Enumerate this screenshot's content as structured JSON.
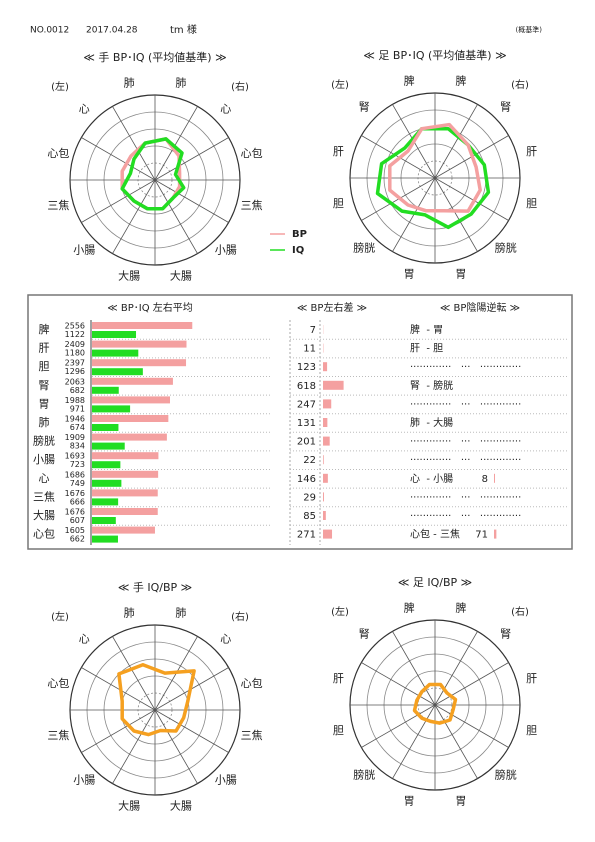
{
  "header": {
    "number": "NO.0012",
    "date": "2017.04.28",
    "name": "tm 様",
    "note": "(概基準)"
  },
  "chart_data": [
    {
      "type": "radar",
      "title": "≪ 手 BP･IQ (平均値基準) ≫",
      "left_label": "(左)",
      "right_label": "(右)",
      "axes": [
        "肺",
        "心",
        "心包",
        "三焦",
        "小腸",
        "大腸",
        "大腸",
        "小腸",
        "三焦",
        "心包",
        "心",
        "肺"
      ],
      "rlim": [
        0,
        100
      ],
      "rticks": [
        20,
        40,
        60,
        80,
        100
      ],
      "series": [
        {
          "name": "BP",
          "color": "#f4a0a0",
          "values": [
            50,
            40,
            30,
            30,
            30,
            35,
            35,
            35,
            40,
            40,
            40,
            45
          ]
        },
        {
          "name": "IQ",
          "color": "#22dd22",
          "values": [
            50,
            45,
            25,
            35,
            30,
            35,
            35,
            35,
            40,
            30,
            35,
            45
          ]
        }
      ]
    },
    {
      "type": "radar",
      "title": "≪ 足 BP･IQ (平均値基準) ≫",
      "left_label": "(左)",
      "right_label": "(右)",
      "axes": [
        "脾",
        "腎",
        "肝",
        "胆",
        "膀胱",
        "胃",
        "胃",
        "膀胱",
        "胆",
        "肝",
        "腎",
        "脾"
      ],
      "rlim": [
        0,
        100
      ],
      "rticks": [
        20,
        40,
        60,
        80,
        100
      ],
      "series": [
        {
          "color": "#22dd22",
          "values": [
            60,
            55,
            60,
            65,
            60,
            60,
            45,
            55,
            70,
            65,
            50,
            60
          ]
        },
        {
          "color": "#f4a0a0",
          "values": [
            65,
            55,
            50,
            55,
            55,
            40,
            40,
            45,
            55,
            55,
            45,
            60
          ]
        }
      ]
    },
    {
      "type": "radar",
      "title": "≪ 手 IQ/BP ≫",
      "left_label": "(左)",
      "right_label": "(右)",
      "axes": [
        "肺",
        "心",
        "心包",
        "三焦",
        "小腸",
        "大腸",
        "大腸",
        "小腸",
        "三焦",
        "心包",
        "心",
        "肺"
      ],
      "rlim": [
        0,
        100
      ],
      "rticks": [
        20,
        40,
        60,
        80,
        100
      ],
      "series": [
        {
          "color": "#f5a020",
          "values": [
            45,
            65,
            40,
            35,
            35,
            25,
            30,
            35,
            40,
            40,
            60,
            55
          ]
        }
      ]
    },
    {
      "type": "radar",
      "title": "≪ 足 IQ/BP ≫",
      "left_label": "(左)",
      "right_label": "(右)",
      "axes": [
        "脾",
        "腎",
        "肝",
        "胆",
        "膀胱",
        "胃",
        "胃",
        "膀胱",
        "胆",
        "肝",
        "腎",
        "脾"
      ],
      "rlim": [
        0,
        100
      ],
      "rticks": [
        20,
        40,
        60,
        80,
        100
      ],
      "series": [
        {
          "color": "#f5a020",
          "values": [
            25,
            20,
            25,
            22,
            25,
            22,
            20,
            22,
            25,
            22,
            22,
            25
          ]
        }
      ]
    }
  ],
  "table": {
    "headers": [
      "≪ BP･IQ 左右平均",
      "≪ BP左右差 ≫",
      "≪ BP陰陽逆転 ≫"
    ],
    "xlim": [
      0,
      2600
    ],
    "diff_xlim": [
      0,
      900
    ],
    "bp_color": "#f4a0a0",
    "iq_color": "#22dd22",
    "rows": [
      {
        "organ": "脾",
        "color": "#1a2a9a",
        "bp": 2556,
        "iq": 1122,
        "diff": 7,
        "inversion": "脾  - 胃"
      },
      {
        "organ": "肝",
        "color": "#1a2a9a",
        "bp": 2409,
        "iq": 1180,
        "diff": 11,
        "inversion": "肝  - 胆"
      },
      {
        "organ": "胆",
        "color": "#8a1a1a",
        "bp": 2397,
        "iq": 1296,
        "diff": 123,
        "inversion": "·············   ···   ·············"
      },
      {
        "organ": "腎",
        "color": "#1a2a9a",
        "bp": 2063,
        "iq": 682,
        "diff": 618,
        "inversion": "腎  - 膀胱"
      },
      {
        "organ": "胃",
        "color": "#8a1a1a",
        "bp": 1988,
        "iq": 971,
        "diff": 247,
        "inversion": "·············   ···   ·············"
      },
      {
        "organ": "肺",
        "color": "#1a2a9a",
        "bp": 1946,
        "iq": 674,
        "diff": 131,
        "inversion": "肺  - 大腸"
      },
      {
        "organ": "膀胱",
        "color": "#8a1a1a",
        "bp": 1909,
        "iq": 834,
        "diff": 201,
        "inversion": "·············   ···   ·············"
      },
      {
        "organ": "小腸",
        "color": "#8a1a1a",
        "bp": 1693,
        "iq": 723,
        "diff": 22,
        "inversion": "·············   ···   ·············"
      },
      {
        "organ": "心",
        "color": "#1a2a9a",
        "bp": 1686,
        "iq": 749,
        "diff": 146,
        "inversion": "心  - 小腸",
        "inversion_value": 8
      },
      {
        "organ": "三焦",
        "color": "#8a1a1a",
        "bp": 1676,
        "iq": 666,
        "diff": 29,
        "inversion": "·············   ···   ·············"
      },
      {
        "organ": "大腸",
        "color": "#8a1a1a",
        "bp": 1676,
        "iq": 607,
        "diff": 85,
        "inversion": "·············   ···   ·············"
      },
      {
        "organ": "心包",
        "color": "#1a2a9a",
        "bp": 1605,
        "iq": 662,
        "diff": 271,
        "inversion": "心包 - 三焦",
        "inversion_value": 71
      }
    ]
  }
}
